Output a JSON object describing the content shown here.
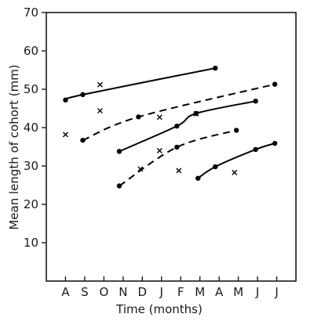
{
  "chart_data": {
    "type": "line",
    "xlabel": "Time (months)",
    "ylabel": "Mean length of cohort (mm)",
    "x_tick_labels": [
      "A",
      "S",
      "O",
      "N",
      "D",
      "J",
      "F",
      "M",
      "A",
      "M",
      "J",
      "J"
    ],
    "y_ticks": [
      10,
      20,
      30,
      40,
      50,
      60,
      70
    ],
    "ylim": [
      0,
      70
    ],
    "xlim": [
      -1,
      12
    ],
    "grid": false,
    "series": [
      {
        "style": "solid",
        "points": [
          [
            0,
            47.2
          ],
          [
            0.9,
            48.6
          ],
          [
            7.8,
            55.5
          ]
        ]
      },
      {
        "style": "dashed",
        "points": [
          [
            0.9,
            36.7
          ],
          [
            3.8,
            42.8
          ],
          [
            10.9,
            51.3
          ]
        ]
      },
      {
        "style": "solid",
        "points": [
          [
            2.8,
            33.8
          ],
          [
            5.8,
            40.4
          ],
          [
            6.8,
            43.7
          ],
          [
            9.9,
            46.9
          ]
        ]
      },
      {
        "style": "dashed",
        "points": [
          [
            2.8,
            24.8
          ],
          [
            5.8,
            34.9
          ],
          [
            8.9,
            39.3
          ]
        ]
      },
      {
        "style": "solid",
        "points": [
          [
            6.9,
            26.8
          ],
          [
            7.8,
            29.8
          ],
          [
            9.9,
            34.3
          ],
          [
            10.9,
            35.9
          ]
        ]
      }
    ],
    "crosses": [
      [
        0,
        38.2
      ],
      [
        1.8,
        51.2
      ],
      [
        1.8,
        44.4
      ],
      [
        3.9,
        29.2
      ],
      [
        4.9,
        42.7
      ],
      [
        4.9,
        34.0
      ],
      [
        5.9,
        28.8
      ],
      [
        6.8,
        43.6
      ],
      [
        8.8,
        28.3
      ]
    ]
  }
}
